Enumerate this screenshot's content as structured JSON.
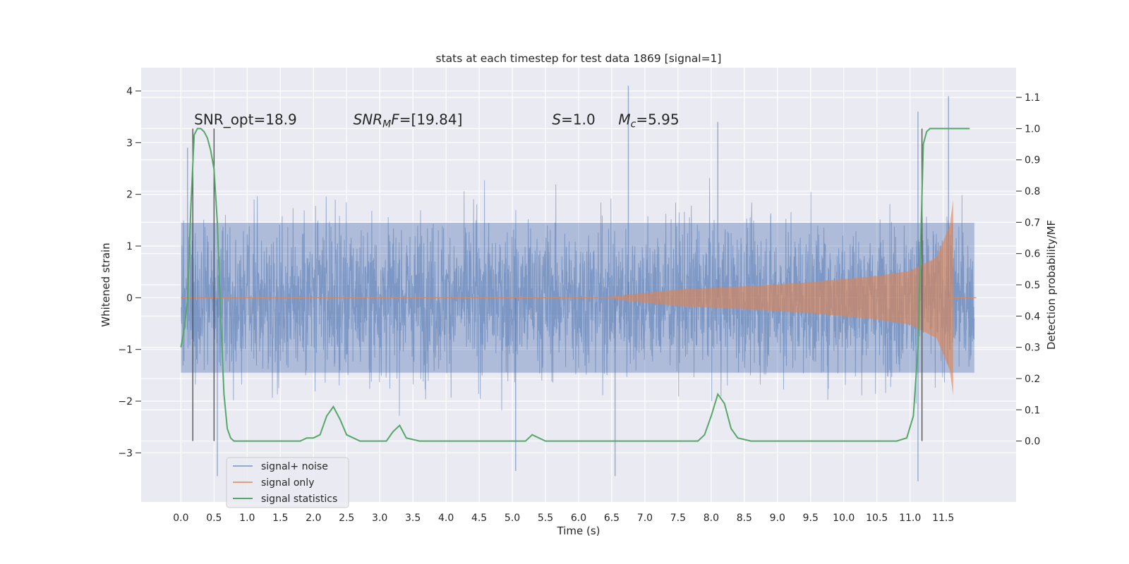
{
  "chart_data": {
    "type": "line",
    "title": "stats at each timestep for test data 1869 [signal=1]",
    "xlabel": "Time (s)",
    "ylabel": "Whitened strain",
    "ylabel_right": "Detection probability/MF",
    "xlim": [
      -0.6,
      12.6
    ],
    "ylim": [
      -3.95,
      4.45
    ],
    "ylim_right": [
      -0.195,
      1.195
    ],
    "x_ticks": [
      0.0,
      0.5,
      1.0,
      1.5,
      2.0,
      2.5,
      3.0,
      3.5,
      4.0,
      4.5,
      5.0,
      5.5,
      6.0,
      6.5,
      7.0,
      7.5,
      8.0,
      8.5,
      9.0,
      9.5,
      10.0,
      10.5,
      11.0,
      11.5
    ],
    "x_tick_labels": [
      "0.0",
      "0.5",
      "1.0",
      "1.5",
      "2.0",
      "2.5",
      "3.0",
      "3.5",
      "4.0",
      "4.5",
      "5.0",
      "5.5",
      "6.0",
      "6.5",
      "7.0",
      "7.5",
      "8.0",
      "8.5",
      "9.0",
      "9.5",
      "10.0",
      "10.5",
      "11.0",
      "11.5"
    ],
    "y_ticks": [
      -3,
      -2,
      -1,
      0,
      1,
      2,
      3,
      4
    ],
    "y_tick_labels": [
      "−3",
      "−2",
      "−1",
      "0",
      "1",
      "2",
      "3",
      "4"
    ],
    "y_right_ticks": [
      0.0,
      0.1,
      0.2,
      0.3,
      0.4,
      0.5,
      0.6,
      0.7,
      0.8,
      0.9,
      1.0,
      1.1
    ],
    "y_right_tick_labels": [
      "0.0",
      "0.1",
      "0.2",
      "0.3",
      "0.4",
      "0.5",
      "0.6",
      "0.7",
      "0.8",
      "0.9",
      "1.0",
      "1.1"
    ],
    "grid": true,
    "legend_position": "lower-left",
    "annotations": [
      {
        "text": "SNR_opt=18.9",
        "x": 0.2,
        "y": 3.35
      },
      {
        "text": "SNRMF=[19.84]",
        "x": 2.6,
        "y": 3.35,
        "math": "SNR_MF"
      },
      {
        "text": "S=1.0",
        "x": 5.6,
        "y": 3.35,
        "math": "S"
      },
      {
        "text": "Mc=5.95",
        "x": 6.6,
        "y": 3.35,
        "math": "M_c"
      }
    ],
    "vlines": [
      0.18,
      0.5,
      11.18
    ],
    "colors": {
      "background": "#eaeaf2",
      "noise": "#4c72b0",
      "signal": "#dd8452",
      "stats": "#55a868",
      "vline": "#555555"
    },
    "series": [
      {
        "name": "signal+ noise",
        "axis": "left",
        "style": "noise-band",
        "x_range": [
          0.0,
          11.97
        ],
        "core_amplitude": 1.45,
        "spike_max": 4.1,
        "spike_min": -3.55,
        "sample_spikes": [
          {
            "x": 6.75,
            "y": 4.1
          },
          {
            "x": 11.58,
            "y": 3.9
          },
          {
            "x": 11.12,
            "y": 3.6
          },
          {
            "x": 8.1,
            "y": 3.4
          },
          {
            "x": 0.1,
            "y": 2.9
          },
          {
            "x": 6.55,
            "y": -3.45
          },
          {
            "x": 11.12,
            "y": -3.55
          },
          {
            "x": 0.55,
            "y": -3.45
          },
          {
            "x": 5.05,
            "y": -3.35
          }
        ]
      },
      {
        "name": "signal only",
        "axis": "left",
        "style": "chirp",
        "chirp_start_x": 6.3,
        "merger_x": 11.65,
        "peak_amplitude": 1.9,
        "ringdown_end_x": 11.72,
        "sample_envelope": [
          {
            "x": 6.3,
            "y": 0.0
          },
          {
            "x": 7.5,
            "y": 0.16
          },
          {
            "x": 8.5,
            "y": 0.22
          },
          {
            "x": 9.5,
            "y": 0.3
          },
          {
            "x": 10.5,
            "y": 0.42
          },
          {
            "x": 11.0,
            "y": 0.52
          },
          {
            "x": 11.4,
            "y": 0.78
          },
          {
            "x": 11.6,
            "y": 1.4
          },
          {
            "x": 11.65,
            "y": 1.9
          }
        ]
      },
      {
        "name": "signal statistics",
        "axis": "right",
        "style": "line",
        "x": [
          0.0,
          0.05,
          0.1,
          0.15,
          0.2,
          0.25,
          0.3,
          0.35,
          0.4,
          0.45,
          0.5,
          0.55,
          0.6,
          0.65,
          0.7,
          0.75,
          0.8,
          0.9,
          1.0,
          1.2,
          1.5,
          1.8,
          1.9,
          2.0,
          2.1,
          2.2,
          2.3,
          2.4,
          2.5,
          2.7,
          2.9,
          3.1,
          3.2,
          3.3,
          3.4,
          3.6,
          3.9,
          4.2,
          4.6,
          5.0,
          5.2,
          5.3,
          5.5,
          5.8,
          6.2,
          6.6,
          7.0,
          7.5,
          7.8,
          7.9,
          8.0,
          8.1,
          8.2,
          8.3,
          8.4,
          8.6,
          9.0,
          9.3,
          9.6,
          10.0,
          10.4,
          10.8,
          10.95,
          11.05,
          11.12,
          11.2,
          11.25,
          11.3,
          11.4,
          11.6,
          11.8,
          11.9
        ],
        "values": [
          0.3,
          0.36,
          0.45,
          0.75,
          0.98,
          1.0,
          1.0,
          0.99,
          0.97,
          0.93,
          0.87,
          0.7,
          0.4,
          0.15,
          0.04,
          0.01,
          0.0,
          0.0,
          0.0,
          0.0,
          0.0,
          0.0,
          0.01,
          0.01,
          0.02,
          0.08,
          0.11,
          0.07,
          0.02,
          0.0,
          0.0,
          0.0,
          0.03,
          0.05,
          0.01,
          0.0,
          0.0,
          0.0,
          0.0,
          0.0,
          0.0,
          0.02,
          0.0,
          0.0,
          0.0,
          0.0,
          0.0,
          0.0,
          0.0,
          0.02,
          0.08,
          0.15,
          0.12,
          0.04,
          0.01,
          0.0,
          0.0,
          0.0,
          0.0,
          0.0,
          0.0,
          0.0,
          0.01,
          0.08,
          0.3,
          0.95,
          0.99,
          1.0,
          1.0,
          1.0,
          1.0,
          1.0
        ]
      }
    ]
  }
}
